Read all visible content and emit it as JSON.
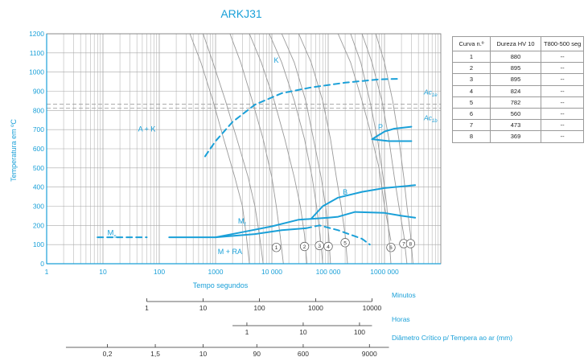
{
  "chart_data": {
    "type": "line",
    "title": "ARKJ31",
    "xlabel": "Tempo segundos",
    "ylabel": "Temperatura em ºC",
    "x_scale": "log",
    "xlim": [
      1,
      10000000
    ],
    "ylim": [
      0,
      1200
    ],
    "x_ticks": [
      {
        "value": 1,
        "label": "1"
      },
      {
        "value": 10,
        "label": "10"
      },
      {
        "value": 100,
        "label": "100"
      },
      {
        "value": 1000,
        "label": "1000"
      },
      {
        "value": 10000,
        "label": "10 000"
      },
      {
        "value": 100000,
        "label": "100 000"
      },
      {
        "value": 1000000,
        "label": "1000 000"
      }
    ],
    "y_ticks": [
      0,
      100,
      200,
      300,
      400,
      500,
      600,
      700,
      800,
      900,
      1000,
      1100,
      1200
    ],
    "grid": true,
    "secondary_axes": [
      {
        "label": "Minutos",
        "ticks": [
          {
            "value": 60,
            "label": "1"
          },
          {
            "value": 600,
            "label": "10"
          },
          {
            "value": 6000,
            "label": "100"
          },
          {
            "value": 60000,
            "label": "1000"
          },
          {
            "value": 600000,
            "label": "10000"
          }
        ],
        "range": [
          60,
          600000
        ]
      },
      {
        "label": "Horas",
        "ticks": [
          {
            "value": 3600,
            "label": "1"
          },
          {
            "value": 36000,
            "label": "10"
          },
          {
            "value": 360000,
            "label": "100"
          }
        ],
        "range": [
          2000,
          600000
        ]
      },
      {
        "label": "Diâmetro Crítico p/ Tempera ao ar (mm)",
        "ticks": [
          {
            "value": 12,
            "label": "0,2"
          },
          {
            "value": 85,
            "label": "1,5"
          },
          {
            "value": 600,
            "label": "10"
          },
          {
            "value": 5400,
            "label": "90"
          },
          {
            "value": 36000,
            "label": "600"
          },
          {
            "value": 540000,
            "label": "9000"
          }
        ],
        "range": [
          2.2,
          1200000
        ]
      }
    ],
    "reference_lines": [
      {
        "name": "Ac1e",
        "y": 832,
        "label_main": "Ac",
        "label_sub": "1e"
      },
      {
        "name": "Ac1b",
        "y": 812,
        "label_main": "Ac",
        "label_sub": "1b"
      }
    ],
    "regions": [
      {
        "label": "A + K",
        "x": 60,
        "y": 690
      },
      {
        "label": "K",
        "x": 12000,
        "y": 1050
      },
      {
        "label": "P",
        "x": 850000,
        "y": 700
      },
      {
        "label": "B",
        "x": 200000,
        "y": 360
      },
      {
        "label": "M + RA",
        "x": 1800,
        "y": 50
      }
    ],
    "transformation_lines": [
      {
        "name": "K",
        "style": "dashed",
        "points": [
          [
            650,
            560
          ],
          [
            1000,
            640
          ],
          [
            2000,
            740
          ],
          [
            5000,
            830
          ],
          [
            15000,
            890
          ],
          [
            50000,
            920
          ],
          [
            200000,
            945
          ],
          [
            800000,
            962
          ],
          [
            1800000,
            965
          ]
        ]
      },
      {
        "name": "Ms",
        "style": "dashed",
        "points": [
          [
            8,
            138
          ],
          [
            20,
            138
          ],
          [
            60,
            138
          ]
        ]
      },
      {
        "name": "Ms-cont",
        "style": "solid",
        "points": [
          [
            150,
            138
          ],
          [
            1000,
            138
          ]
        ]
      },
      {
        "name": "Mf-dash",
        "style": "dashed",
        "points": [
          [
            40000,
            185
          ],
          [
            70000,
            200
          ],
          [
            150000,
            175
          ],
          [
            400000,
            130
          ],
          [
            550000,
            100
          ]
        ]
      },
      {
        "name": "bainite-start",
        "style": "solid",
        "points": [
          [
            1000,
            138
          ],
          [
            3000,
            165
          ],
          [
            10000,
            195
          ],
          [
            30000,
            230
          ],
          [
            100000,
            240
          ],
          [
            150000,
            245
          ],
          [
            300000,
            270
          ],
          [
            1000000,
            265
          ],
          [
            2000000,
            250
          ],
          [
            3500000,
            240
          ]
        ]
      },
      {
        "name": "martensite-low",
        "style": "solid",
        "points": [
          [
            1000,
            138
          ],
          [
            5000,
            155
          ],
          [
            15000,
            175
          ],
          [
            40000,
            185
          ]
        ]
      },
      {
        "name": "bainite-end",
        "style": "solid",
        "points": [
          [
            50000,
            235
          ],
          [
            80000,
            300
          ],
          [
            150000,
            345
          ],
          [
            400000,
            375
          ],
          [
            1000000,
            395
          ],
          [
            3500000,
            410
          ]
        ]
      },
      {
        "name": "pearlite-start",
        "style": "solid",
        "points": [
          [
            600000,
            650
          ],
          [
            1000000,
            690
          ],
          [
            1500000,
            705
          ],
          [
            3000000,
            715
          ]
        ]
      },
      {
        "name": "pearlite-end",
        "style": "solid",
        "points": [
          [
            600000,
            650
          ],
          [
            1200000,
            640
          ],
          [
            3000000,
            640
          ]
        ]
      }
    ],
    "cooling_curves": [
      {
        "name": "1",
        "label_at": [
          12000,
          85
        ],
        "points": [
          [
            1800,
            1200
          ],
          [
            2800,
            1050
          ],
          [
            4500,
            850
          ],
          [
            7000,
            650
          ],
          [
            10000,
            450
          ],
          [
            12000,
            300
          ],
          [
            14000,
            150
          ],
          [
            16000,
            0
          ]
        ]
      },
      {
        "name": "2",
        "label_at": [
          38000,
          90
        ],
        "points": [
          [
            4000,
            1200
          ],
          [
            6500,
            1050
          ],
          [
            11000,
            850
          ],
          [
            17000,
            650
          ],
          [
            25000,
            450
          ],
          [
            32000,
            300
          ],
          [
            38000,
            150
          ],
          [
            42000,
            0
          ]
        ]
      },
      {
        "name": "3",
        "label_at": [
          70000,
          95
        ],
        "points": [
          [
            9000,
            1200
          ],
          [
            15000,
            1050
          ],
          [
            25000,
            850
          ],
          [
            38000,
            650
          ],
          [
            52000,
            450
          ],
          [
            62000,
            300
          ],
          [
            72000,
            150
          ],
          [
            80000,
            0
          ]
        ]
      },
      {
        "name": "4",
        "label_at": [
          100000,
          90
        ],
        "points": [
          [
            15000,
            1200
          ],
          [
            25000,
            1050
          ],
          [
            40000,
            850
          ],
          [
            55000,
            650
          ],
          [
            75000,
            450
          ],
          [
            90000,
            300
          ],
          [
            102000,
            150
          ],
          [
            110000,
            0
          ]
        ]
      },
      {
        "name": "5",
        "label_at": [
          200000,
          110
        ],
        "points": [
          [
            30000,
            1200
          ],
          [
            50000,
            1050
          ],
          [
            80000,
            850
          ],
          [
            110000,
            650
          ],
          [
            140000,
            450
          ],
          [
            170000,
            300
          ],
          [
            200000,
            150
          ],
          [
            220000,
            0
          ]
        ]
      },
      {
        "name": "6",
        "label_at": [
          1300000,
          85
        ],
        "points": [
          [
            150000,
            1200
          ],
          [
            250000,
            1050
          ],
          [
            400000,
            850
          ],
          [
            550000,
            700
          ],
          [
            800000,
            500
          ],
          [
            1000000,
            300
          ],
          [
            1300000,
            120
          ]
        ]
      },
      {
        "name": "7",
        "label_at": [
          2200000,
          105
        ],
        "points": [
          [
            400000,
            1200
          ],
          [
            600000,
            1050
          ],
          [
            900000,
            850
          ],
          [
            1200000,
            650
          ],
          [
            1500000,
            450
          ],
          [
            1800000,
            300
          ],
          [
            2200000,
            150
          ],
          [
            2500000,
            0
          ]
        ]
      },
      {
        "name": "8",
        "label_at": [
          2900000,
          105
        ],
        "points": [
          [
            700000,
            1200
          ],
          [
            1000000,
            1050
          ],
          [
            1400000,
            850
          ],
          [
            1800000,
            650
          ],
          [
            2200000,
            450
          ],
          [
            2500000,
            300
          ],
          [
            2900000,
            150
          ],
          [
            3200000,
            0
          ]
        ]
      },
      {
        "name": "",
        "points": [
          [
            600,
            1200
          ],
          [
            900,
            1050
          ],
          [
            1500,
            850
          ],
          [
            2400,
            650
          ],
          [
            3800,
            450
          ],
          [
            5000,
            300
          ],
          [
            6000,
            150
          ],
          [
            7000,
            0
          ]
        ]
      },
      {
        "name": "",
        "points": [
          [
            350,
            1200
          ],
          [
            550,
            1050
          ],
          [
            900,
            850
          ],
          [
            1400,
            650
          ],
          [
            2200,
            450
          ],
          [
            3000,
            300
          ],
          [
            3500,
            150
          ],
          [
            4000,
            0
          ]
        ]
      },
      {
        "name": "",
        "points": [
          [
            250000,
            1200
          ],
          [
            380000,
            1050
          ],
          [
            550000,
            850
          ],
          [
            750000,
            650
          ],
          [
            950000,
            450
          ],
          [
            1100000,
            300
          ],
          [
            1300000,
            0
          ]
        ]
      }
    ],
    "ms_label": {
      "main": "M",
      "sub": "s",
      "x": 12,
      "y": 150
    },
    "mf_label": {
      "main": "M",
      "sub": "f",
      "x": 2500,
      "y": 210
    }
  },
  "table": {
    "headers": [
      "Curva n.º",
      "Dureza HV 10",
      "T800-500 seg"
    ],
    "rows": [
      [
        "1",
        "880",
        "--"
      ],
      [
        "2",
        "895",
        "--"
      ],
      [
        "3",
        "895",
        "--"
      ],
      [
        "4",
        "824",
        "--"
      ],
      [
        "5",
        "782",
        "--"
      ],
      [
        "6",
        "560",
        "--"
      ],
      [
        "7",
        "473",
        "--"
      ],
      [
        "8",
        "369",
        "--"
      ]
    ]
  },
  "colors": {
    "accent": "#1aa0d8",
    "grid": "#a8a8a8",
    "curve": "#9a9a9a",
    "text": "#222222"
  }
}
